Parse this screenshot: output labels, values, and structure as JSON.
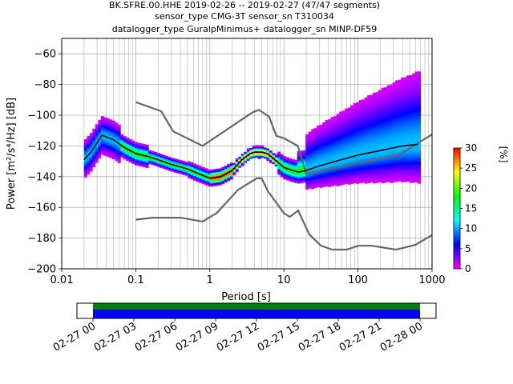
{
  "title_lines": [
    "BK.SFRE.00.HHE   2019-02-26 -- 2019-02-27  (47/47 segments)",
    "sensor_type CMG-3T sensor_sn T310034",
    "datalogger_type GuralpMinimus+ datalogger_sn MINP-DF59"
  ],
  "chart_data": {
    "type": "heatmap",
    "xlabel": "Period [s]",
    "ylabel": "Power [m²/s⁴/Hz] [dB]",
    "x_scale": "log",
    "xlim": [
      0.01,
      1000
    ],
    "ylim": [
      -200,
      -50
    ],
    "x_ticks": [
      0.01,
      0.1,
      1,
      10,
      100,
      1000
    ],
    "x_tick_labels": [
      "0.01",
      "0.1",
      "1",
      "10",
      "100",
      "1000"
    ],
    "y_ticks": [
      -200,
      -180,
      -160,
      -140,
      -120,
      -100,
      -80,
      -60
    ],
    "y_tick_labels": [
      "−200",
      "−180",
      "−160",
      "−140",
      "−120",
      "−100",
      "−80",
      "−60"
    ],
    "grid": true,
    "mean_curve": {
      "color": "#000000",
      "x": [
        0.02,
        0.025,
        0.03,
        0.035,
        0.05,
        0.07,
        0.1,
        0.15,
        0.2,
        0.3,
        0.5,
        0.7,
        1.0,
        1.4,
        2.0,
        2.7,
        3.5,
        4.0,
        5.0,
        6.0,
        8.0,
        10.0,
        13.0,
        16.0,
        20.0,
        30.0,
        50.0,
        100.0,
        200.0,
        400.0,
        650.0
      ],
      "y": [
        -129,
        -124,
        -118,
        -113,
        -116,
        -121,
        -125,
        -127,
        -129,
        -132,
        -135,
        -138,
        -141,
        -140,
        -136,
        -129,
        -125,
        -124,
        -124,
        -125,
        -130,
        -134,
        -136,
        -137,
        -136,
        -133,
        -130,
        -126,
        -123,
        -120,
        -119
      ]
    },
    "noise_models": [
      {
        "role": "NHNM",
        "color": "#666666",
        "x": [
          0.1,
          0.22,
          0.32,
          0.8,
          3.8,
          4.6,
          6.3,
          7.9,
          10.0,
          15.4,
          20.0,
          354.8,
          1000.0
        ],
        "y": [
          -91.5,
          -97.4,
          -110.5,
          -120.0,
          -98.0,
          -96.5,
          -101.0,
          -113.5,
          -115.0,
          -120.0,
          -138.0,
          -126.0,
          -112.5
        ]
      },
      {
        "role": "NLNM",
        "color": "#666666",
        "x": [
          0.1,
          0.17,
          0.4,
          0.8,
          1.24,
          2.4,
          4.3,
          5.0,
          6.0,
          10.0,
          12.0,
          15.6,
          21.9,
          31.6,
          45.0,
          70.0,
          101.0,
          154.0,
          328.0,
          600.0,
          1000.0
        ],
        "y": [
          -168.0,
          -166.7,
          -166.7,
          -169.2,
          -163.7,
          -148.6,
          -141.1,
          -141.1,
          -149.0,
          -163.8,
          -166.2,
          -162.1,
          -177.5,
          -185.0,
          -187.5,
          -187.5,
          -185.0,
          -185.0,
          -187.5,
          -184.4,
          -178.0
        ]
      }
    ],
    "colorbar": {
      "label": "[%]",
      "min": 0,
      "max": 30,
      "ticks": [
        0,
        5,
        10,
        15,
        20,
        25,
        30
      ],
      "tick_labels": [
        "0",
        "5",
        "10",
        "15",
        "20",
        "25",
        "30"
      ],
      "colormap": [
        "#ffffff",
        "#ff00ff",
        "#0000ff",
        "#00ffff",
        "#00ff00",
        "#ffff00",
        "#ff0000"
      ]
    },
    "timeline": {
      "tick_labels": [
        "02-27 00",
        "02-27 03",
        "02-27 06",
        "02-27 09",
        "02-27 12",
        "02-27 15",
        "02-27 18",
        "02-27 21",
        "02-28 00"
      ],
      "bars": [
        {
          "name": "coverage",
          "color": "#008000"
        },
        {
          "name": "data",
          "color": "#0000ff"
        }
      ],
      "coverage_start_fraction": 0.0,
      "coverage_end_fraction": 1.0
    }
  }
}
